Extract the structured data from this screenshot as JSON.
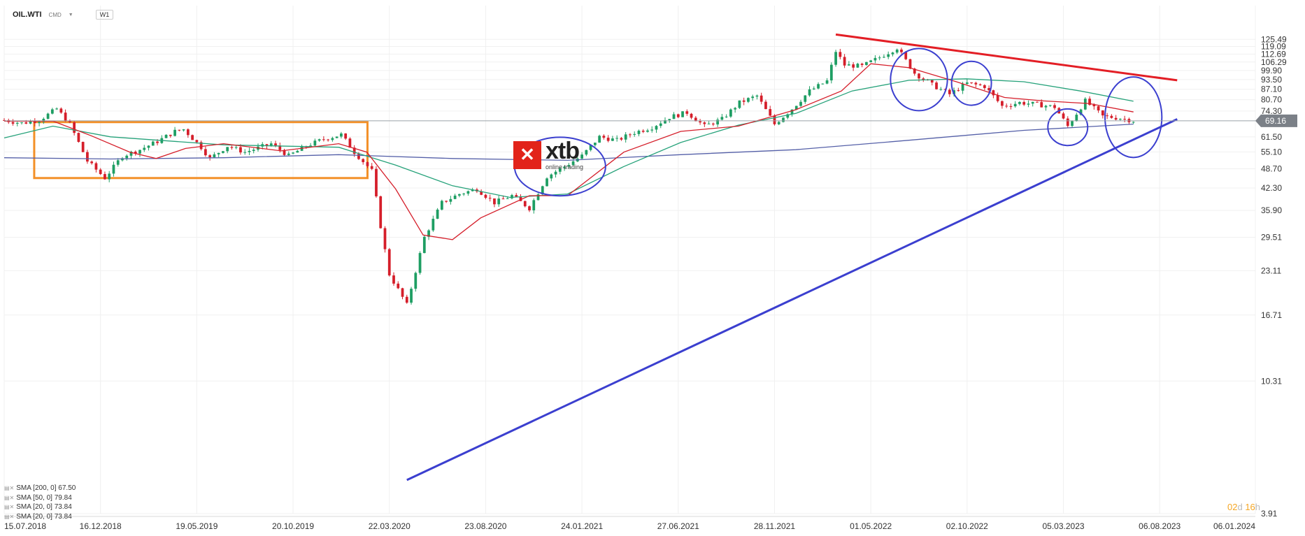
{
  "header": {
    "symbol": "OIL.WTI",
    "instrument_class": "CMD",
    "dropdown_icon": "chevron-down-icon",
    "timeframe": "W1"
  },
  "logo": {
    "word": "xtb",
    "tagline": "online trading"
  },
  "timer": {
    "days": "02",
    "days_unit": "d",
    "hours": "16",
    "hours_unit": "h"
  },
  "legend": [
    {
      "label": "SMA [200, 0] 67.50"
    },
    {
      "label": "SMA [50, 0] 79.84"
    },
    {
      "label": "SMA [20, 0] 73.84"
    },
    {
      "label": "SMA [20, 0] 73.84"
    }
  ],
  "colors": {
    "up": "#1e9e63",
    "down": "#d51e2a",
    "sma200": "#5560a8",
    "sma50": "#26a27a",
    "sma20": "#d51e2a",
    "resistance": "#e31e25",
    "support": "#3b3fcf",
    "box": "#f39028",
    "marker": "#3b3fcf",
    "price_line": "#9aa0a6",
    "price_tag": "#7b8087"
  },
  "chart_data": {
    "type": "candlestick",
    "title": "",
    "y_scale": "log",
    "ylim": [
      3.91,
      145
    ],
    "xlim": [
      "2018-07-15",
      "2024-01-06"
    ],
    "y_ticks": [
      "125.49",
      "119.09",
      "112.69",
      "106.29",
      "99.90",
      "93.50",
      "87.10",
      "80.70",
      "74.30",
      "61.50",
      "55.10",
      "48.70",
      "42.30",
      "35.90",
      "29.51",
      "23.11",
      "16.71",
      "10.31",
      "3.91"
    ],
    "x_ticks": [
      {
        "date": "2018-07-15",
        "label": "15.07.2018"
      },
      {
        "date": "2018-12-16",
        "label": "16.12.2018"
      },
      {
        "date": "2019-05-19",
        "label": "19.05.2019"
      },
      {
        "date": "2019-10-20",
        "label": "20.10.2019"
      },
      {
        "date": "2020-03-22",
        "label": "22.03.2020"
      },
      {
        "date": "2020-08-23",
        "label": "23.08.2020"
      },
      {
        "date": "2021-01-24",
        "label": "24.01.2021"
      },
      {
        "date": "2021-06-27",
        "label": "27.06.2021"
      },
      {
        "date": "2021-11-28",
        "label": "28.11.2021"
      },
      {
        "date": "2022-05-01",
        "label": "01.05.2022"
      },
      {
        "date": "2022-10-02",
        "label": "02.10.2022"
      },
      {
        "date": "2023-03-05",
        "label": "05.03.2023"
      },
      {
        "date": "2023-08-06",
        "label": "06.08.2023"
      },
      {
        "date": "2024-01-06",
        "label": "06.01.2024"
      }
    ],
    "current_price": "69.16",
    "price_path": [
      [
        "2018-07-15",
        69.5
      ],
      [
        "2018-08-12",
        68.0
      ],
      [
        "2018-09-09",
        69.5
      ],
      [
        "2018-10-07",
        75.5
      ],
      [
        "2018-10-28",
        67.5
      ],
      [
        "2018-11-25",
        51.5
      ],
      [
        "2018-12-23",
        45.5
      ],
      [
        "2019-01-20",
        53.5
      ],
      [
        "2019-02-17",
        56.0
      ],
      [
        "2019-03-17",
        59.5
      ],
      [
        "2019-04-14",
        64.0
      ],
      [
        "2019-04-28",
        65.0
      ],
      [
        "2019-05-26",
        57.0
      ],
      [
        "2019-06-09",
        52.5
      ],
      [
        "2019-07-07",
        57.5
      ],
      [
        "2019-08-04",
        55.0
      ],
      [
        "2019-09-15",
        58.5
      ],
      [
        "2019-10-13",
        53.5
      ],
      [
        "2019-11-10",
        57.5
      ],
      [
        "2019-12-08",
        60.5
      ],
      [
        "2020-01-05",
        62.5
      ],
      [
        "2020-01-26",
        55.0
      ],
      [
        "2020-02-23",
        48.0
      ],
      [
        "2020-03-08",
        32.0
      ],
      [
        "2020-03-22",
        22.5
      ],
      [
        "2020-04-19",
        18.0
      ],
      [
        "2020-05-17",
        29.5
      ],
      [
        "2020-06-14",
        38.0
      ],
      [
        "2020-07-12",
        40.5
      ],
      [
        "2020-08-09",
        42.0
      ],
      [
        "2020-09-06",
        38.0
      ],
      [
        "2020-10-04",
        40.0
      ],
      [
        "2020-11-01",
        36.5
      ],
      [
        "2020-11-29",
        46.0
      ],
      [
        "2020-12-27",
        49.5
      ],
      [
        "2021-01-24",
        53.5
      ],
      [
        "2021-02-21",
        61.5
      ],
      [
        "2021-03-21",
        60.0
      ],
      [
        "2021-04-18",
        63.5
      ],
      [
        "2021-05-16",
        66.0
      ],
      [
        "2021-06-13",
        71.0
      ],
      [
        "2021-07-11",
        73.5
      ],
      [
        "2021-08-08",
        66.5
      ],
      [
        "2021-09-05",
        70.0
      ],
      [
        "2021-10-03",
        79.0
      ],
      [
        "2021-10-31",
        83.0
      ],
      [
        "2021-11-28",
        67.5
      ],
      [
        "2021-12-26",
        75.5
      ],
      [
        "2022-01-23",
        86.0
      ],
      [
        "2022-02-20",
        92.5
      ],
      [
        "2022-03-06",
        115.0
      ],
      [
        "2022-03-20",
        104.0
      ],
      [
        "2022-04-17",
        103.0
      ],
      [
        "2022-05-15",
        110.0
      ],
      [
        "2022-06-12",
        118.0
      ],
      [
        "2022-07-10",
        98.0
      ],
      [
        "2022-08-07",
        90.0
      ],
      [
        "2022-09-04",
        84.0
      ],
      [
        "2022-10-02",
        91.0
      ],
      [
        "2022-10-30",
        89.0
      ],
      [
        "2022-11-27",
        77.0
      ],
      [
        "2022-12-25",
        79.0
      ],
      [
        "2023-01-22",
        78.0
      ],
      [
        "2023-02-19",
        76.5
      ],
      [
        "2023-03-12",
        66.5
      ],
      [
        "2023-04-09",
        80.0
      ],
      [
        "2023-05-07",
        71.5
      ],
      [
        "2023-06-04",
        70.5
      ],
      [
        "2023-06-25",
        69.2
      ]
    ],
    "sma_series": [
      {
        "points": [
          [
            "2018-07-15",
            52.8
          ],
          [
            "2019-01-01",
            52.3
          ],
          [
            "2019-07-01",
            52.8
          ],
          [
            "2020-01-01",
            54.0
          ],
          [
            "2020-07-01",
            52.5
          ],
          [
            "2021-01-01",
            51.8
          ],
          [
            "2021-07-01",
            54.0
          ],
          [
            "2022-01-01",
            56.0
          ],
          [
            "2022-07-01",
            60.0
          ],
          [
            "2023-01-01",
            64.5
          ],
          [
            "2023-06-25",
            67.5
          ]
        ]
      },
      {
        "points": [
          [
            "2018-07-15",
            61.0
          ],
          [
            "2018-10-01",
            66.5
          ],
          [
            "2019-01-01",
            61.5
          ],
          [
            "2019-07-01",
            58.0
          ],
          [
            "2020-01-01",
            57.0
          ],
          [
            "2020-04-01",
            50.0
          ],
          [
            "2020-07-01",
            43.0
          ],
          [
            "2020-10-01",
            39.5
          ],
          [
            "2021-01-01",
            40.5
          ],
          [
            "2021-04-01",
            49.5
          ],
          [
            "2021-07-01",
            59.0
          ],
          [
            "2021-10-01",
            67.0
          ],
          [
            "2022-01-01",
            73.0
          ],
          [
            "2022-04-01",
            86.0
          ],
          [
            "2022-07-01",
            93.0
          ],
          [
            "2022-10-01",
            94.0
          ],
          [
            "2023-01-01",
            92.0
          ],
          [
            "2023-04-01",
            86.0
          ],
          [
            "2023-06-25",
            79.8
          ]
        ]
      },
      {
        "points": [
          [
            "2018-07-15",
            69.0
          ],
          [
            "2018-10-01",
            69.0
          ],
          [
            "2018-12-01",
            62.0
          ],
          [
            "2019-02-01",
            55.0
          ],
          [
            "2019-03-15",
            52.5
          ],
          [
            "2019-05-01",
            56.5
          ],
          [
            "2019-07-01",
            58.5
          ],
          [
            "2019-10-01",
            55.5
          ],
          [
            "2020-01-01",
            58.5
          ],
          [
            "2020-02-15",
            55.0
          ],
          [
            "2020-04-01",
            42.0
          ],
          [
            "2020-05-15",
            30.0
          ],
          [
            "2020-07-01",
            29.0
          ],
          [
            "2020-08-15",
            34.0
          ],
          [
            "2020-11-01",
            40.0
          ],
          [
            "2021-01-01",
            40.0
          ],
          [
            "2021-04-01",
            55.0
          ],
          [
            "2021-07-01",
            64.0
          ],
          [
            "2021-10-01",
            66.5
          ],
          [
            "2022-01-01",
            75.0
          ],
          [
            "2022-03-15",
            86.0
          ],
          [
            "2022-05-01",
            105.0
          ],
          [
            "2022-07-01",
            102.0
          ],
          [
            "2022-09-15",
            92.0
          ],
          [
            "2022-12-01",
            82.0
          ],
          [
            "2023-02-01",
            80.0
          ],
          [
            "2023-04-15",
            78.5
          ],
          [
            "2023-06-25",
            73.8
          ]
        ]
      }
    ],
    "annotations": {
      "resistance_line": [
        [
          "2022-03-06",
          130.0
        ],
        [
          "2023-09-03",
          93.0
        ]
      ],
      "support_line": [
        [
          "2020-04-19",
          5.0
        ],
        [
          "2023-09-03",
          70.0
        ]
      ],
      "range_box": {
        "from": "2018-09-01",
        "to": "2020-02-16",
        "top": 68.5,
        "bottom": 45.5
      },
      "markers": [
        {
          "center": [
            "2020-12-20",
            49.5
          ],
          "rx": 0.08,
          "ry": 0.08
        },
        {
          "center": [
            "2022-07-17",
            93.5
          ],
          "rx": 0.05,
          "ry": 0.085
        },
        {
          "center": [
            "2022-10-09",
            91.0
          ],
          "rx": 0.035,
          "ry": 0.06
        },
        {
          "center": [
            "2023-03-12",
            66.0
          ],
          "rx": 0.035,
          "ry": 0.05
        },
        {
          "center": [
            "2023-06-25",
            71.0
          ],
          "rx": 0.05,
          "ry": 0.11
        }
      ]
    }
  }
}
